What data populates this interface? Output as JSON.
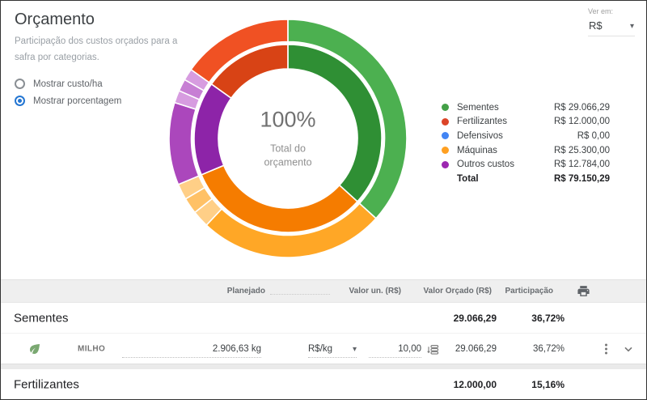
{
  "panel": {
    "title": "Orçamento",
    "subtitle": "Participação dos custos orçados para a safra por categorias.",
    "radios": [
      {
        "label": "Mostrar custo/ha",
        "selected": false
      },
      {
        "label": "Mostrar porcentagem",
        "selected": true
      }
    ]
  },
  "view_control": {
    "label": "Ver em:",
    "value": "R$"
  },
  "chart_data": {
    "type": "pie",
    "variant": "double-ring-donut",
    "center_value": "100%",
    "center_label": "Total do orçamento",
    "unit": "R$",
    "categories": [
      "Sementes",
      "Fertilizantes",
      "Defensivos",
      "Máquinas",
      "Outros custos"
    ],
    "values": [
      29066.29,
      12000.0,
      0.0,
      25300.0,
      12784.0
    ],
    "percentages": [
      36.72,
      15.16,
      0.0,
      31.96,
      16.15
    ],
    "total": 79150.29,
    "legend_position": "right",
    "legend": [
      {
        "label": "Sementes",
        "value": "R$ 29.066,29",
        "color": "#43a047"
      },
      {
        "label": "Fertilizantes",
        "value": "R$ 12.000,00",
        "color": "#dc4428"
      },
      {
        "label": "Defensivos",
        "value": "R$ 0,00",
        "color": "#4285f4"
      },
      {
        "label": "Máquinas",
        "value": "R$ 25.300,00",
        "color": "#ffa021"
      },
      {
        "label": "Outros custos",
        "value": "R$ 12.784,00",
        "color": "#9c27b0"
      }
    ],
    "legend_total": {
      "label": "Total",
      "value": "R$ 79.150,29"
    },
    "rings": {
      "inner": [
        {
          "name": "Sementes",
          "pct": 36.72,
          "color": "#2f8f34"
        },
        {
          "name": "Máquinas",
          "pct": 31.96,
          "color": "#f57c00"
        },
        {
          "name": "Outros custos",
          "pct": 16.15,
          "color": "#8d24a8"
        },
        {
          "name": "Fertilizantes",
          "pct": 15.16,
          "color": "#d84315"
        }
      ],
      "outer": [
        {
          "pct": 36.72,
          "color": "#4cb050"
        },
        {
          "pct": 25.3,
          "color": "#ffa726"
        },
        {
          "pct": 2.3,
          "color": "#ffcf87"
        },
        {
          "pct": 2.2,
          "color": "#ffc166"
        },
        {
          "pct": 2.16,
          "color": "#ffcf87"
        },
        {
          "pct": 11.2,
          "color": "#ab47bc"
        },
        {
          "pct": 1.7,
          "color": "#d79ce0"
        },
        {
          "pct": 1.65,
          "color": "#c77fd4"
        },
        {
          "pct": 1.6,
          "color": "#d79ce0"
        },
        {
          "pct": 15.16,
          "color": "#f05123"
        }
      ]
    }
  },
  "table": {
    "headers": {
      "planejado": "Planejado",
      "valor_un": "Valor un. (R$)",
      "valor_orcado": "Valor Orçado (R$)",
      "participacao": "Participação"
    },
    "sections": [
      {
        "name": "Sementes",
        "valor_orcado": "29.066,29",
        "participacao": "36,72%",
        "items": [
          {
            "name": "MILHO",
            "planejado": "2.906,63 kg",
            "unit": "R$/kg",
            "valor_un": "10,00",
            "valor_orcado": "29.066,29",
            "participacao": "36,72%"
          }
        ]
      },
      {
        "name": "Fertilizantes",
        "valor_orcado": "12.000,00",
        "participacao": "15,16%"
      }
    ]
  }
}
